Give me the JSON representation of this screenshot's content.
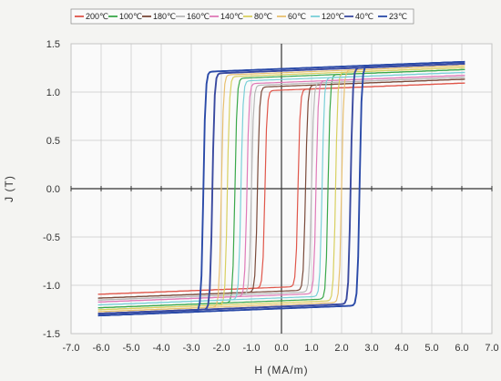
{
  "chart_data": {
    "type": "line",
    "title": "",
    "xlabel": "H (MA/m)",
    "ylabel": "J (T)",
    "xlim": [
      -7.0,
      7.0
    ],
    "ylim": [
      -1.5,
      1.5
    ],
    "x_ticks": [
      "-7.0",
      "-6.0",
      "-5.0",
      "-4.0",
      "-3.0",
      "-2.0",
      "-1.0",
      "0.0",
      "1.0",
      "2.0",
      "3.0",
      "4.0",
      "5.0",
      "6.0",
      "7.0"
    ],
    "y_ticks": [
      "1.5",
      "1.0",
      "0.5",
      "0.0",
      "-0.5",
      "-1.0",
      "-1.5"
    ],
    "grid": true,
    "legend_position": "top",
    "series": [
      {
        "name": "200℃",
        "color": "#e0564a",
        "Jr": 1.02,
        "Hc": 0.55
      },
      {
        "name": "100℃",
        "color": "#3aa84a",
        "Jr": 1.16,
        "Hc": 1.55
      },
      {
        "name": "180℃",
        "color": "#7a4a3a",
        "Jr": 1.06,
        "Hc": 0.8
      },
      {
        "name": "160℃",
        "color": "#b8b8b8",
        "Jr": 1.08,
        "Hc": 1.0
      },
      {
        "name": "140℃",
        "color": "#e07ab8",
        "Jr": 1.1,
        "Hc": 1.15
      },
      {
        "name": "80℃",
        "color": "#d8d060",
        "Jr": 1.18,
        "Hc": 1.8
      },
      {
        "name": "60℃",
        "color": "#e8c070",
        "Jr": 1.2,
        "Hc": 2.0
      },
      {
        "name": "120℃",
        "color": "#7ad0d8",
        "Jr": 1.13,
        "Hc": 1.35
      },
      {
        "name": "40℃",
        "color": "#3a4aa0",
        "Jr": 1.22,
        "Hc": 2.3
      },
      {
        "name": "23℃",
        "color": "#2a4aa8",
        "Jr": 1.24,
        "Hc": 2.6
      }
    ],
    "h_max": 6.1
  }
}
